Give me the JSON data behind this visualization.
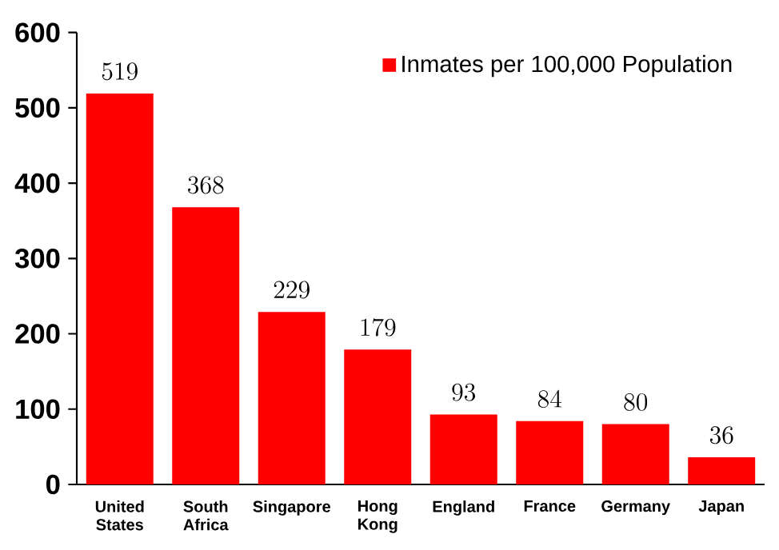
{
  "chart_data": {
    "type": "bar",
    "categories": [
      "United States",
      "South Africa",
      "Singapore",
      "Hong Kong",
      "England",
      "France",
      "Germany",
      "Japan"
    ],
    "series": [
      {
        "name": "Inmates per 100,000 Population",
        "color": "#ff0000",
        "values": [
          519,
          368,
          229,
          179,
          93,
          84,
          80,
          36
        ]
      }
    ],
    "ylim": [
      0,
      600
    ],
    "yticks": [
      0,
      100,
      200,
      300,
      400,
      500,
      600
    ],
    "data_labels": true,
    "legend": "top right",
    "grid": false
  }
}
